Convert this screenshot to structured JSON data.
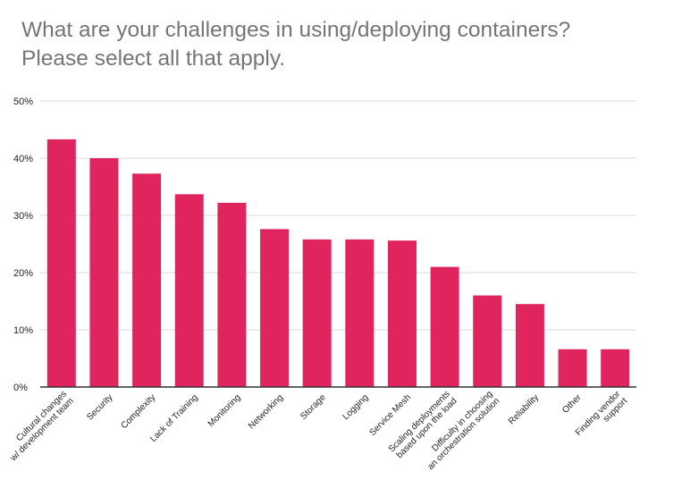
{
  "chart_data": {
    "type": "bar",
    "title_lines": [
      "What are your challenges in using/deploying containers?",
      "Please select all that apply."
    ],
    "xlabel": "",
    "ylabel": "",
    "ylim": [
      0,
      50
    ],
    "yticks": [
      "0%",
      "10%",
      "20%",
      "30%",
      "40%",
      "50%"
    ],
    "grid": true,
    "categories": [
      [
        "Cultural changes",
        "w/ development team"
      ],
      [
        "Security"
      ],
      [
        "Complexity"
      ],
      [
        "Lack of Training"
      ],
      [
        "Monitoring"
      ],
      [
        "Networking"
      ],
      [
        "Storage"
      ],
      [
        "Logging"
      ],
      [
        "Service Mesh"
      ],
      [
        "Scaling deployments",
        "based upon the load"
      ],
      [
        "Difficulty in choosing",
        "an orchestration solution"
      ],
      [
        "Reliability"
      ],
      [
        "Other"
      ],
      [
        "Finding vendor",
        "support"
      ]
    ],
    "values": [
      43.3,
      40.0,
      37.3,
      33.7,
      32.2,
      27.6,
      25.8,
      25.8,
      25.6,
      21.0,
      16.0,
      14.5,
      6.6,
      6.6
    ],
    "bar_color": "#e0245e",
    "grid_color": "#d9d9d9",
    "axis_color": "#333333"
  }
}
